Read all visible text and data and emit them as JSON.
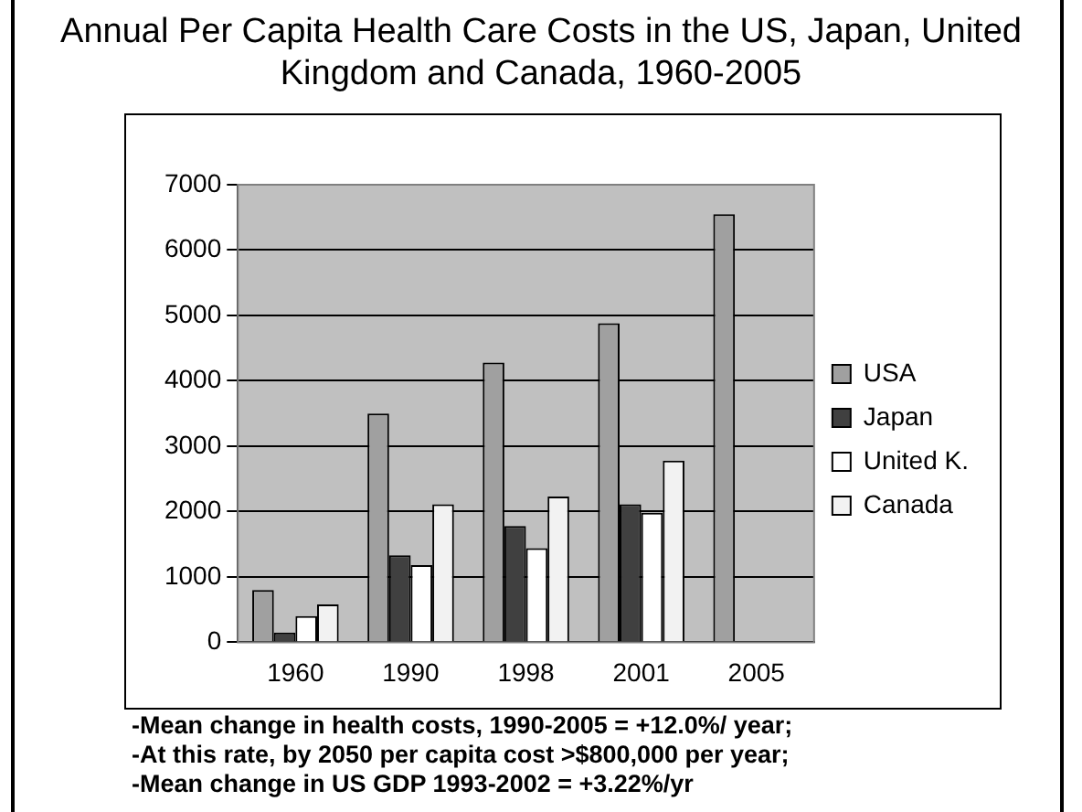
{
  "chart_data": {
    "type": "bar",
    "title": "Annual Per Capita Health Care Costs in the US, Japan, United Kingdom and Canada, 1960-2005",
    "categories": [
      "1960",
      "1990",
      "1998",
      "2001",
      "2005"
    ],
    "series": [
      {
        "name": "USA",
        "color": "#a0a0a0",
        "values": [
          800,
          3500,
          4280,
          4880,
          6550
        ]
      },
      {
        "name": "Japan",
        "color": "#404040",
        "values": [
          150,
          1330,
          1780,
          2110,
          null
        ]
      },
      {
        "name": "United K.",
        "color": "#ffffff",
        "values": [
          400,
          1180,
          1440,
          1980,
          null
        ]
      },
      {
        "name": "Canada",
        "color": "#f2f2f2",
        "values": [
          580,
          2110,
          2230,
          2780,
          null
        ]
      }
    ],
    "ylim": [
      0,
      7000
    ],
    "yticks": [
      0,
      1000,
      2000,
      3000,
      4000,
      5000,
      6000,
      7000
    ],
    "grid": "y",
    "legend": "right",
    "annotations": [
      "-Mean change in health costs, 1990-2005 = +12.0%/ year;",
      "-At this rate, by 2050 per capita cost >$800,000 per year;",
      "-Mean change in US GDP 1993-2002 = +3.22%/yr"
    ]
  }
}
